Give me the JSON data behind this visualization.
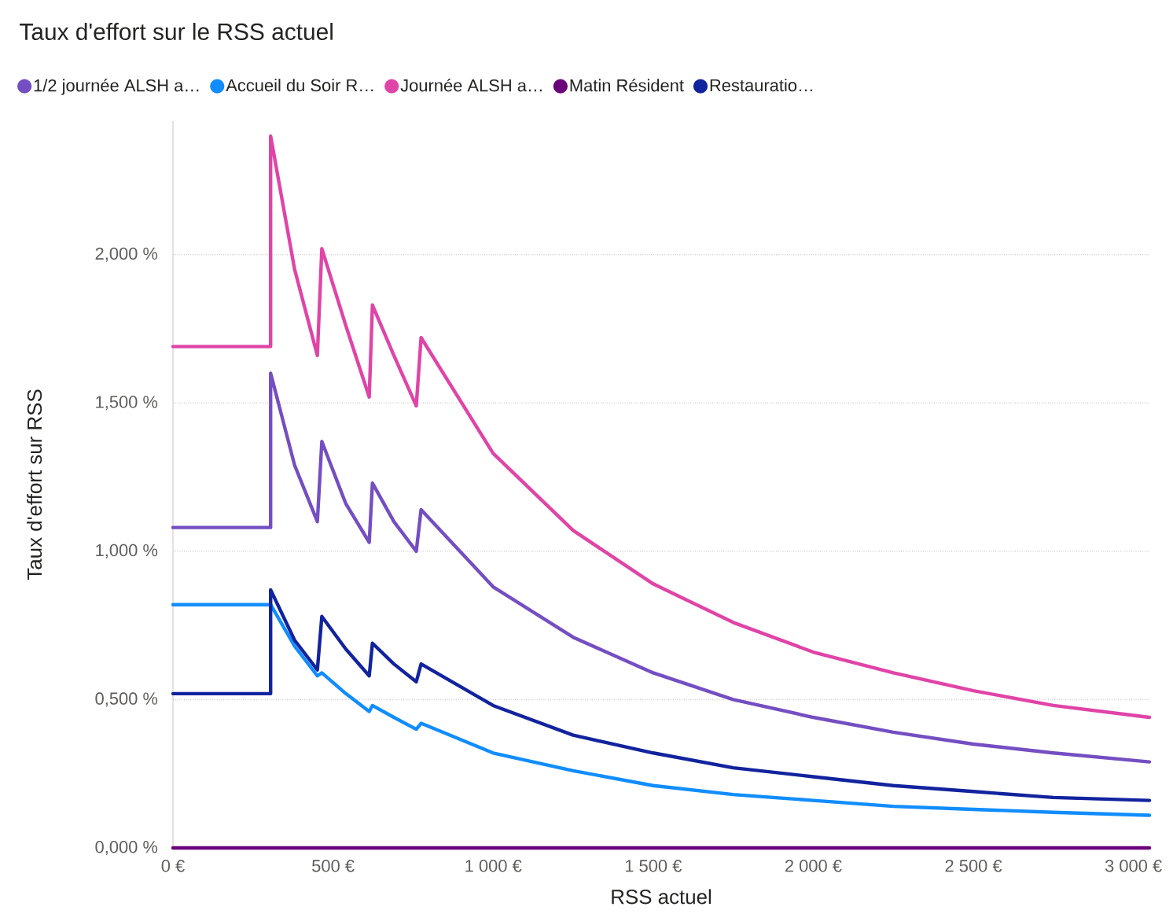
{
  "chart_data": {
    "type": "line",
    "title": "Taux d'effort sur le RSS actuel",
    "xlabel": "RSS actuel",
    "ylabel": "Taux d'effort sur RSS",
    "xlim": [
      0,
      3050
    ],
    "ylim": [
      0,
      2.45
    ],
    "xticks": [
      {
        "value": 0,
        "label": "0 €"
      },
      {
        "value": 500,
        "label": "500 €"
      },
      {
        "value": 1000,
        "label": "1 000 €"
      },
      {
        "value": 1500,
        "label": "1 500 €"
      },
      {
        "value": 2000,
        "label": "2 000 €"
      },
      {
        "value": 2500,
        "label": "2 500 €"
      },
      {
        "value": 3000,
        "label": "3 000 €"
      }
    ],
    "yticks": [
      {
        "value": 0,
        "label": "0,000 %"
      },
      {
        "value": 0.5,
        "label": "0,500 %"
      },
      {
        "value": 1,
        "label": "1,000 %"
      },
      {
        "value": 1.5,
        "label": "1,500 %"
      },
      {
        "value": 2,
        "label": "2,000 %"
      }
    ],
    "grid": "y",
    "legend": "top",
    "line_style": "solid",
    "series": [
      {
        "name": "1/2 journée ALSH a…",
        "color": "#744ec2",
        "x": [
          0,
          305,
          305,
          380,
          451,
          465,
          540,
          613,
          623,
          690,
          760,
          775,
          1000,
          1250,
          1500,
          1750,
          2000,
          2250,
          2500,
          2750,
          3050
        ],
        "values": [
          1.08,
          1.08,
          1.6,
          1.29,
          1.1,
          1.37,
          1.16,
          1.03,
          1.23,
          1.1,
          1.0,
          1.14,
          0.88,
          0.71,
          0.59,
          0.5,
          0.44,
          0.39,
          0.35,
          0.32,
          0.29
        ]
      },
      {
        "name": "Accueil du Soir R…",
        "color": "#118dff",
        "x": [
          0,
          305,
          380,
          451,
          465,
          540,
          613,
          623,
          690,
          760,
          775,
          1000,
          1250,
          1500,
          1750,
          2000,
          2250,
          2500,
          2750,
          3050
        ],
        "values": [
          0.82,
          0.82,
          0.68,
          0.58,
          0.59,
          0.52,
          0.46,
          0.48,
          0.44,
          0.4,
          0.42,
          0.32,
          0.26,
          0.21,
          0.18,
          0.16,
          0.14,
          0.13,
          0.12,
          0.11
        ]
      },
      {
        "name": "Journée ALSH a…",
        "color": "#e044a7",
        "x": [
          0,
          305,
          305,
          380,
          451,
          465,
          540,
          613,
          623,
          690,
          760,
          775,
          1000,
          1250,
          1500,
          1750,
          2000,
          2250,
          2500,
          2750,
          3050
        ],
        "values": [
          1.69,
          1.69,
          2.4,
          1.95,
          1.66,
          2.02,
          1.76,
          1.52,
          1.83,
          1.66,
          1.49,
          1.72,
          1.33,
          1.07,
          0.89,
          0.76,
          0.66,
          0.59,
          0.53,
          0.48,
          0.44
        ]
      },
      {
        "name": "Matin Résident",
        "color": "#6b007b",
        "x": [
          0,
          3050
        ],
        "values": [
          0,
          0
        ]
      },
      {
        "name": "Restauratio…",
        "color": "#12239e",
        "x": [
          0,
          305,
          305,
          380,
          451,
          465,
          540,
          613,
          623,
          690,
          760,
          775,
          1000,
          1250,
          1500,
          1750,
          2000,
          2250,
          2500,
          2750,
          3050
        ],
        "values": [
          0.52,
          0.52,
          0.87,
          0.7,
          0.6,
          0.78,
          0.67,
          0.58,
          0.69,
          0.62,
          0.56,
          0.62,
          0.48,
          0.38,
          0.32,
          0.27,
          0.24,
          0.21,
          0.19,
          0.17,
          0.16
        ]
      }
    ]
  }
}
